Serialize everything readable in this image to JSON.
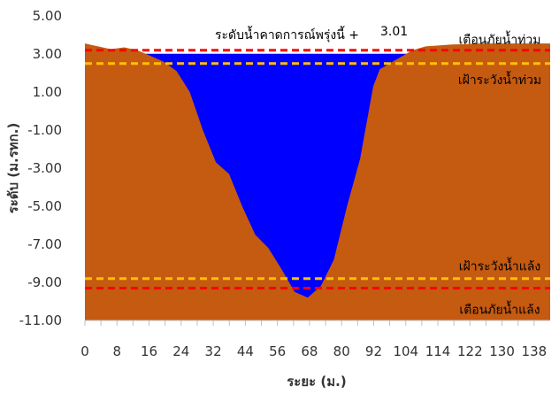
{
  "chart_data": {
    "type": "area",
    "title": "",
    "xlabel": "ระยะ (ม.)",
    "ylabel": "ระดับ (ม.รทก.)",
    "xlim": [
      0,
      142
    ],
    "ylim": [
      -11,
      5
    ],
    "yticks": [
      5,
      3,
      1,
      -1,
      -3,
      -5,
      -7,
      -9,
      -11
    ],
    "ytick_labels": [
      "5.00",
      "3.00",
      "1.00",
      "-1.00",
      "-3.00",
      "-5.00",
      "-7.00",
      "-9.00",
      "-11.00"
    ],
    "xticks": [
      0,
      8,
      16,
      24,
      32,
      44,
      56,
      68,
      80,
      92,
      104,
      114,
      122,
      130,
      138
    ],
    "x_tick_labels": [
      "0",
      "8",
      "16",
      "24",
      "32",
      "44",
      "56",
      "68",
      "80",
      "92",
      "104",
      "114",
      "122",
      "130",
      "138"
    ],
    "ground_profile": {
      "color": "#c55a11",
      "points": [
        [
          0,
          3.55
        ],
        [
          4,
          3.4
        ],
        [
          8,
          3.25
        ],
        [
          12,
          3.35
        ],
        [
          16,
          3.2
        ],
        [
          20,
          2.9
        ],
        [
          24,
          2.6
        ],
        [
          28,
          2.1
        ],
        [
          32,
          1.0
        ],
        [
          36,
          -1.0
        ],
        [
          40,
          -2.7
        ],
        [
          44,
          -3.3
        ],
        [
          48,
          -5.0
        ],
        [
          52,
          -6.5
        ],
        [
          56,
          -7.2
        ],
        [
          60,
          -8.3
        ],
        [
          64,
          -9.5
        ],
        [
          68,
          -9.8
        ],
        [
          72,
          -9.2
        ],
        [
          76,
          -7.8
        ],
        [
          80,
          -5.0
        ],
        [
          84,
          -2.5
        ],
        [
          88,
          1.3
        ],
        [
          90,
          2.2
        ],
        [
          96,
          2.8
        ],
        [
          100,
          3.2
        ],
        [
          104,
          3.4
        ],
        [
          108,
          3.45
        ],
        [
          112,
          3.5
        ],
        [
          116,
          3.52
        ],
        [
          120,
          3.55
        ],
        [
          124,
          3.55
        ]
      ]
    },
    "water": {
      "color": "#0000ff",
      "level": 3.01
    },
    "reference_lines": [
      {
        "key": "flood_warning",
        "value": 3.2,
        "color": "#ff0000",
        "label": "เตือนภัยน้ำท่วม"
      },
      {
        "key": "flood_watch",
        "value": 2.5,
        "color": "#ffc000",
        "label": "เฝ้าระวังน้ำท่วม"
      },
      {
        "key": "drought_watch",
        "value": -8.8,
        "color": "#ffc000",
        "label": "เฝ้าระวังน้ำแล้ง"
      },
      {
        "key": "drought_warning",
        "value": -9.3,
        "color": "#ff0000",
        "label": "เตือนภัยน้ำแล้ง"
      }
    ],
    "forecast": {
      "label": "ระดับน้ำคาดการณ์พรุ่งนี้ +",
      "value": "3.01"
    },
    "grid": false,
    "legend": "none"
  }
}
